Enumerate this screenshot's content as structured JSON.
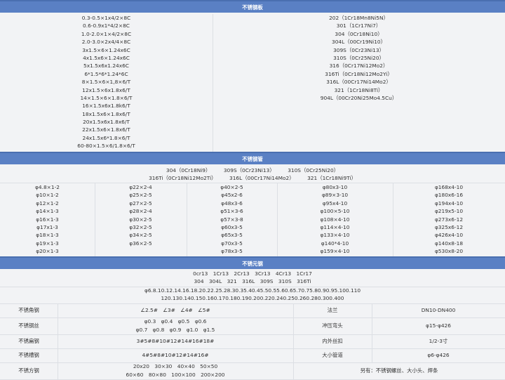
{
  "sheet": {
    "title": "不锈钢板",
    "sizes": [
      "0.3-0.5×1x4/2×8C",
      "0.6-0.9x1*4/2×8C",
      "1.0-2.0×1×4/2×8C",
      "2.0-3.0×2x4/4×8C",
      "3x1.5×6×1.24x6C",
      "4x1.5x6×1.24x6C",
      "5x1.5x6x1.24x6C",
      "6*1.5*6*1.24*6C",
      "8×1.5×6×1,8×6/T",
      "12x1.5×6x1.8x6/T",
      "14×1.5×6×1.8×6/T",
      "16×1.5x6x1.8k6/T",
      "18x1.5x6×1.8x6/T",
      "20x1.5x6x1.8x6/T",
      "22x1.5x6×1.8x6/T",
      "24x1.5x6*1.8×6/T",
      "60-80×1.5×6/1.8×6/T"
    ],
    "grades": [
      "202（1Cr18Mn8Ni5N）",
      "301（1Cr17Ni7）",
      "304（0Cr18Ni10）",
      "304L（00Cr19Ni10）",
      "309S（0Cr23Ni13）",
      "310S（0Cr25Ni20）",
      "316（0Cr17Ni12Mo2）",
      "316Ti（0Cr18Ni12Mo2Yi）",
      "316L（00Cr17Ni14Mo2）",
      "321（1Cr18Ni8Ti）",
      "904L（00Cr20Ni25Mo4.5Cu）"
    ]
  },
  "pipe": {
    "title": "不锈钢管",
    "grades_line1": "304（0Cr18Ni9）　　　309S（0Cr23Ni13）　　　310S（0Cr25Ni20）",
    "grades_line2": "316Ti（0Cr18Ni12Mo2Ti）　　　316L（00Cr17Ni14Mo2）　　　321（1Cr18Ni9Ti）",
    "columns": [
      [
        "φ4.8×1-2",
        "φ10×1-2",
        "φ12×1-2",
        "φ14×1-3",
        "φ16×1-3",
        "φ17x1-3",
        "φ18×1-3",
        "φ19×1-3",
        "φ20×1-3"
      ],
      [
        "φ22×2-4",
        "φ25×2-5",
        "φ27×2-5",
        "φ28×2-4",
        "φ30×2-5",
        "φ32×2-5",
        "φ34×2-5",
        "φ36×2-5"
      ],
      [
        "φ40×2-5",
        "φ45x2-6",
        "φ48x3-6",
        "φ51×3-6",
        "φ57×3-8",
        "φ60x3-5",
        "φ65x3-5",
        "φ70x3-5",
        "φ78x3-5"
      ],
      [
        "φ80x3-10",
        "φ89×3-10",
        "φ95x4-10",
        "φ100×5-10",
        "φ108×4-10",
        "φ114×4-10",
        "φ133×4-10",
        "φ140*4-10",
        "φ159×4-10"
      ],
      [
        "φ168x4-10",
        "φ180x6-16",
        "φ194x4-10",
        "φ219x5-10",
        "φ273x6-12",
        "φ325x6-12",
        "φ426x4-10",
        "φ140x8-18",
        "φ530x8-20"
      ]
    ]
  },
  "bar": {
    "title": "不锈元钢",
    "grades_line1": "0cr13　1Cr13　2Cr13　3Cr13　4Cr13　1Cr17",
    "grades_line2": "304　304L　321　316L　309S　310S　316Ti",
    "sizes_line1": "φ6.8.10.12.14.16.18.20.22.25.28.30.35.40.45.50.55.60.65.70.75.80.90.95.100.110",
    "sizes_line2": "120.130.140.150.160.170.180.190.200.220.240.250.260.280.300.400"
  },
  "rows": [
    {
      "label": "不锈角钢",
      "value": [
        "∠2.5#　∠3#　∠4#　∠5#"
      ],
      "label2": "法兰",
      "value2": "DN10-DN400"
    },
    {
      "label": "不锈钢丝",
      "value": [
        "φ0.3　φ0.4　φ0.5　φ0.6",
        "φ0.7　φ0.8　φ0.9　φ1.0　φ1.5"
      ],
      "label2": "冲压弯头",
      "value2": "φ15-φ426"
    },
    {
      "label": "不锈扁钢",
      "value": [
        "3#5#8#10#12#14#16#18#"
      ],
      "label2": "内外丝扣",
      "value2": "1/2-3寸"
    },
    {
      "label": "不锈槽钢",
      "value": [
        "4#5#8#10#12#14#16#"
      ],
      "label2": "大小管道",
      "value2": "φ6-φ426"
    },
    {
      "label": "不锈方钢",
      "value": [
        "20x20　30×30　40×40　50×50",
        "60×60　80×80　100×100　200×200"
      ],
      "note": "另有：不锈钢螺丝、大小头、焊条"
    }
  ],
  "colors": {
    "header": "#5a80c4",
    "background": "#f2f3f5"
  }
}
